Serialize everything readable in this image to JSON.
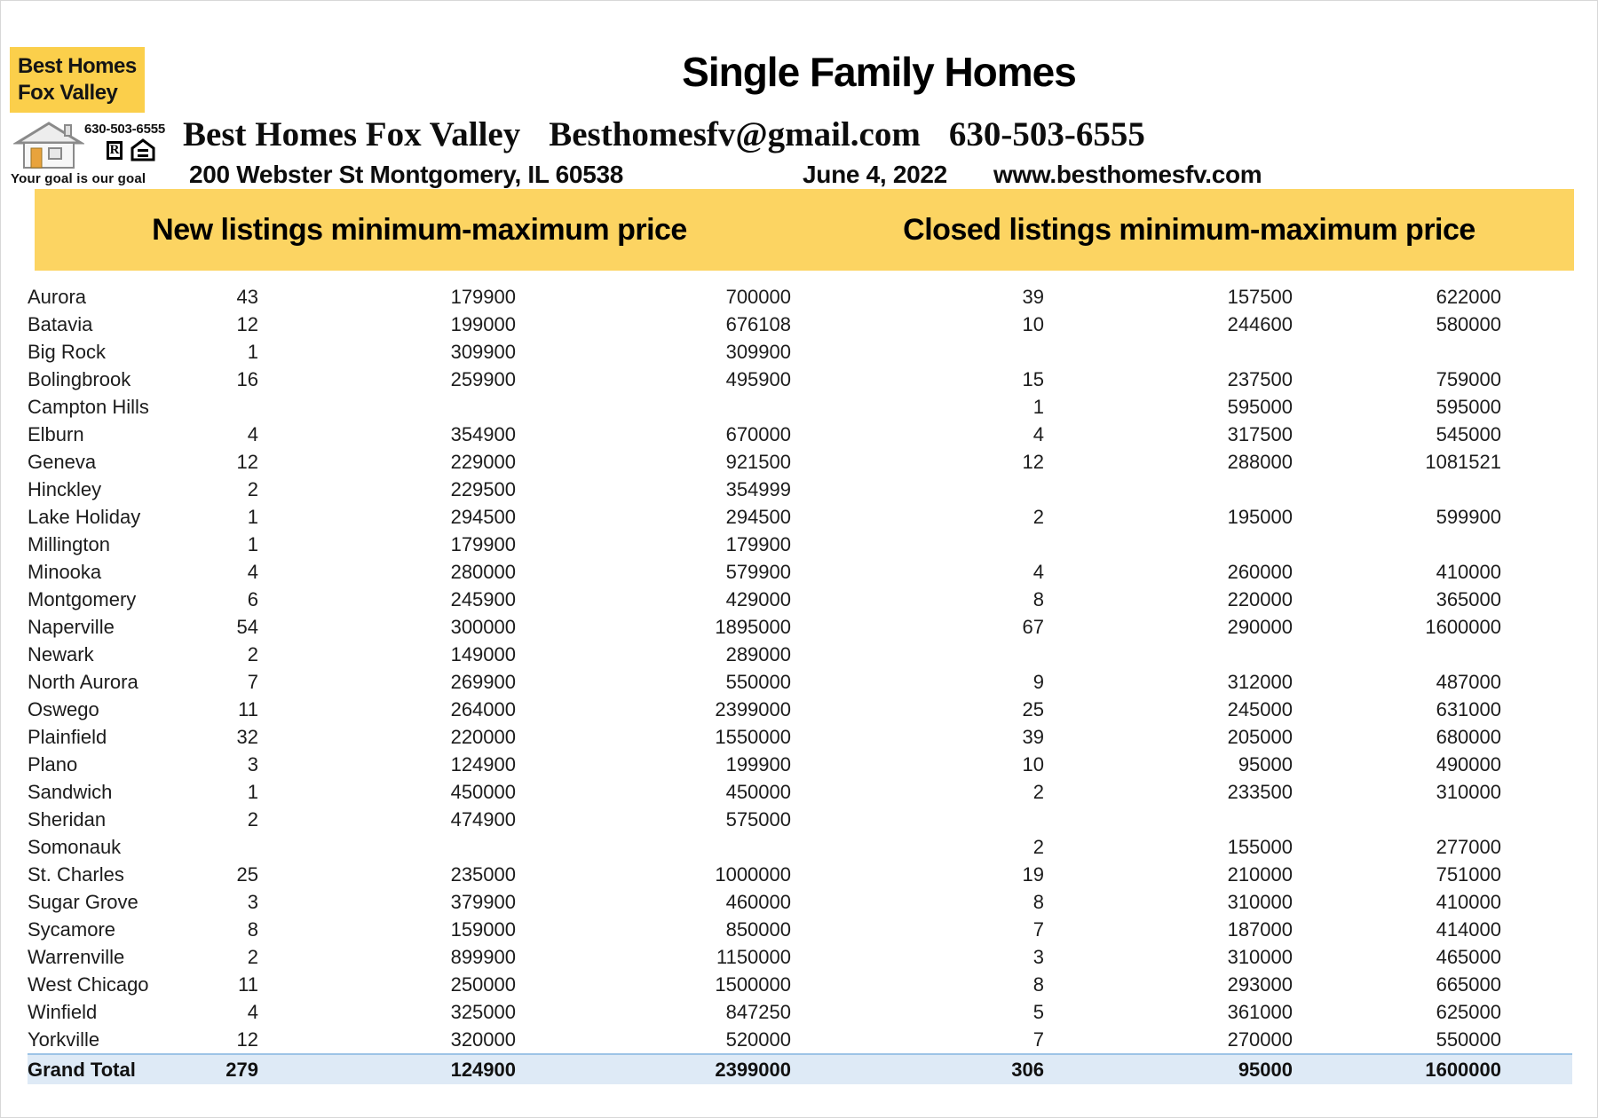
{
  "logo": {
    "name_line1": "Best Homes",
    "name_line2": "Fox Valley",
    "phone": "630-503-6555",
    "realtor_mark": "R",
    "tagline": "Your goal is our goal",
    "box_color": "#FBCF4B"
  },
  "header": {
    "title": "Single Family Homes",
    "company": "Best Homes Fox Valley",
    "email": "Besthomesfv@gmail.com",
    "phone": "630-503-6555",
    "address": "200 Webster St Montgomery, IL 60538",
    "date": "June 4, 2022",
    "website": "www.besthomesfv.com"
  },
  "banner": {
    "left_label": "New listings minimum-maximum price",
    "right_label": "Closed listings minimum-maximum price",
    "bg_color": "#FCD462"
  },
  "table": {
    "rows": [
      {
        "city": "Aurora",
        "nc": "43",
        "nmin": "179900",
        "nmax": "700000",
        "cc": "39",
        "cmin": "157500",
        "cmax": "622000"
      },
      {
        "city": "Batavia",
        "nc": "12",
        "nmin": "199000",
        "nmax": "676108",
        "cc": "10",
        "cmin": "244600",
        "cmax": "580000"
      },
      {
        "city": "Big Rock",
        "nc": "1",
        "nmin": "309900",
        "nmax": "309900",
        "cc": "",
        "cmin": "",
        "cmax": ""
      },
      {
        "city": "Bolingbrook",
        "nc": "16",
        "nmin": "259900",
        "nmax": "495900",
        "cc": "15",
        "cmin": "237500",
        "cmax": "759000"
      },
      {
        "city": "Campton Hills",
        "nc": "",
        "nmin": "",
        "nmax": "",
        "cc": "1",
        "cmin": "595000",
        "cmax": "595000"
      },
      {
        "city": "Elburn",
        "nc": "4",
        "nmin": "354900",
        "nmax": "670000",
        "cc": "4",
        "cmin": "317500",
        "cmax": "545000"
      },
      {
        "city": "Geneva",
        "nc": "12",
        "nmin": "229000",
        "nmax": "921500",
        "cc": "12",
        "cmin": "288000",
        "cmax": "1081521"
      },
      {
        "city": "Hinckley",
        "nc": "2",
        "nmin": "229500",
        "nmax": "354999",
        "cc": "",
        "cmin": "",
        "cmax": ""
      },
      {
        "city": "Lake Holiday",
        "nc": "1",
        "nmin": "294500",
        "nmax": "294500",
        "cc": "2",
        "cmin": "195000",
        "cmax": "599900"
      },
      {
        "city": "Millington",
        "nc": "1",
        "nmin": "179900",
        "nmax": "179900",
        "cc": "",
        "cmin": "",
        "cmax": ""
      },
      {
        "city": "Minooka",
        "nc": "4",
        "nmin": "280000",
        "nmax": "579900",
        "cc": "4",
        "cmin": "260000",
        "cmax": "410000"
      },
      {
        "city": "Montgomery",
        "nc": "6",
        "nmin": "245900",
        "nmax": "429000",
        "cc": "8",
        "cmin": "220000",
        "cmax": "365000"
      },
      {
        "city": "Naperville",
        "nc": "54",
        "nmin": "300000",
        "nmax": "1895000",
        "cc": "67",
        "cmin": "290000",
        "cmax": "1600000"
      },
      {
        "city": "Newark",
        "nc": "2",
        "nmin": "149000",
        "nmax": "289000",
        "cc": "",
        "cmin": "",
        "cmax": ""
      },
      {
        "city": "North Aurora",
        "nc": "7",
        "nmin": "269900",
        "nmax": "550000",
        "cc": "9",
        "cmin": "312000",
        "cmax": "487000"
      },
      {
        "city": "Oswego",
        "nc": "11",
        "nmin": "264000",
        "nmax": "2399000",
        "cc": "25",
        "cmin": "245000",
        "cmax": "631000"
      },
      {
        "city": "Plainfield",
        "nc": "32",
        "nmin": "220000",
        "nmax": "1550000",
        "cc": "39",
        "cmin": "205000",
        "cmax": "680000"
      },
      {
        "city": "Plano",
        "nc": "3",
        "nmin": "124900",
        "nmax": "199900",
        "cc": "10",
        "cmin": "95000",
        "cmax": "490000"
      },
      {
        "city": "Sandwich",
        "nc": "1",
        "nmin": "450000",
        "nmax": "450000",
        "cc": "2",
        "cmin": "233500",
        "cmax": "310000"
      },
      {
        "city": "Sheridan",
        "nc": "2",
        "nmin": "474900",
        "nmax": "575000",
        "cc": "",
        "cmin": "",
        "cmax": ""
      },
      {
        "city": "Somonauk",
        "nc": "",
        "nmin": "",
        "nmax": "",
        "cc": "2",
        "cmin": "155000",
        "cmax": "277000"
      },
      {
        "city": "St. Charles",
        "nc": "25",
        "nmin": "235000",
        "nmax": "1000000",
        "cc": "19",
        "cmin": "210000",
        "cmax": "751000"
      },
      {
        "city": "Sugar Grove",
        "nc": "3",
        "nmin": "379900",
        "nmax": "460000",
        "cc": "8",
        "cmin": "310000",
        "cmax": "410000"
      },
      {
        "city": "Sycamore",
        "nc": "8",
        "nmin": "159000",
        "nmax": "850000",
        "cc": "7",
        "cmin": "187000",
        "cmax": "414000"
      },
      {
        "city": "Warrenville",
        "nc": "2",
        "nmin": "899900",
        "nmax": "1150000",
        "cc": "3",
        "cmin": "310000",
        "cmax": "465000"
      },
      {
        "city": "West Chicago",
        "nc": "11",
        "nmin": "250000",
        "nmax": "1500000",
        "cc": "8",
        "cmin": "293000",
        "cmax": "665000"
      },
      {
        "city": "Winfield",
        "nc": "4",
        "nmin": "325000",
        "nmax": "847250",
        "cc": "5",
        "cmin": "361000",
        "cmax": "625000"
      },
      {
        "city": "Yorkville",
        "nc": "12",
        "nmin": "320000",
        "nmax": "520000",
        "cc": "7",
        "cmin": "270000",
        "cmax": "550000"
      }
    ],
    "grand_total": {
      "city": "Grand Total",
      "nc": "279",
      "nmin": "124900",
      "nmax": "2399000",
      "cc": "306",
      "cmin": "95000",
      "cmax": "1600000"
    },
    "total_row_bg": "#DEEAF6",
    "total_row_border": "#9DC3E6"
  }
}
